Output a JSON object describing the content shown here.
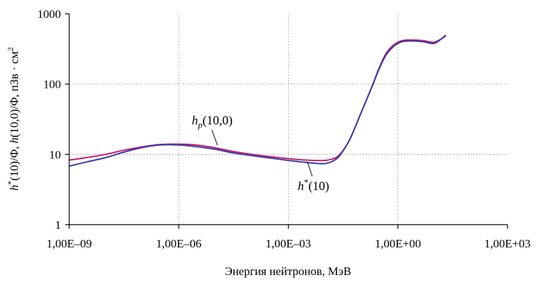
{
  "chart_data": {
    "type": "line",
    "title": "",
    "xlabel": "Энергия нейтронов, МэВ",
    "ylabel": "h*(10)/Φ, h(10,0)/Φ, пЗв · см²",
    "ylabel_parts": {
      "h1": "h",
      "sup1": "*",
      "p1": "(10)/Φ, ",
      "h2": "h",
      "p2": "(10,0)/Φ, пЗв · см",
      "sup2": "2"
    },
    "x_scale": "log",
    "y_scale": "log",
    "xlim": [
      1e-09,
      1000
    ],
    "ylim": [
      1,
      1000
    ],
    "x_ticks": [
      1e-09,
      1e-06,
      0.001,
      1,
      1000
    ],
    "x_tick_labels": [
      "1,00E–09",
      "1,00E–06",
      "1,00E–03",
      "1,00E+00",
      "1,00E+03"
    ],
    "y_ticks": [
      1,
      10,
      100,
      1000
    ],
    "y_tick_labels": [
      "1",
      "10",
      "100",
      "1000"
    ],
    "grid": true,
    "series": [
      {
        "color": "#3a3aa6",
        "label_parts": {
          "base": "h",
          "sup": "*",
          "rest": "(10)"
        },
        "x": [
          1e-09,
          3e-09,
          1e-08,
          3e-08,
          1e-07,
          3e-07,
          1e-06,
          3e-06,
          1e-05,
          3e-05,
          0.0001,
          0.0003,
          0.001,
          0.003,
          0.01,
          0.02,
          0.03,
          0.05,
          0.1,
          0.2,
          0.3,
          0.5,
          1,
          2,
          5,
          10,
          20
        ],
        "y": [
          6.8,
          7.8,
          9.0,
          10.7,
          12.5,
          13.6,
          13.6,
          12.9,
          11.8,
          10.5,
          9.6,
          8.9,
          8.2,
          7.7,
          7.4,
          8.5,
          10.8,
          17,
          40,
          95,
          160,
          270,
          380,
          410,
          400,
          380,
          490
        ]
      },
      {
        "color": "#c01c6c",
        "label_parts": {
          "base": "h",
          "sub": "p",
          "rest": "(10,0)"
        },
        "x": [
          1e-09,
          3e-09,
          1e-08,
          3e-08,
          1e-07,
          3e-07,
          1e-06,
          3e-06,
          1e-05,
          3e-05,
          0.0001,
          0.0003,
          0.001,
          0.003,
          0.01,
          0.02,
          0.03,
          0.05,
          0.1,
          0.2,
          0.3,
          0.5,
          1,
          2,
          5,
          10,
          20
        ],
        "y": [
          8.3,
          9.0,
          10.0,
          11.4,
          12.8,
          13.8,
          14.0,
          13.6,
          12.4,
          11.0,
          10.0,
          9.3,
          8.7,
          8.3,
          8.2,
          9.0,
          11.0,
          17,
          40,
          95,
          165,
          285,
          395,
          425,
          415,
          395,
          480
        ]
      }
    ]
  }
}
